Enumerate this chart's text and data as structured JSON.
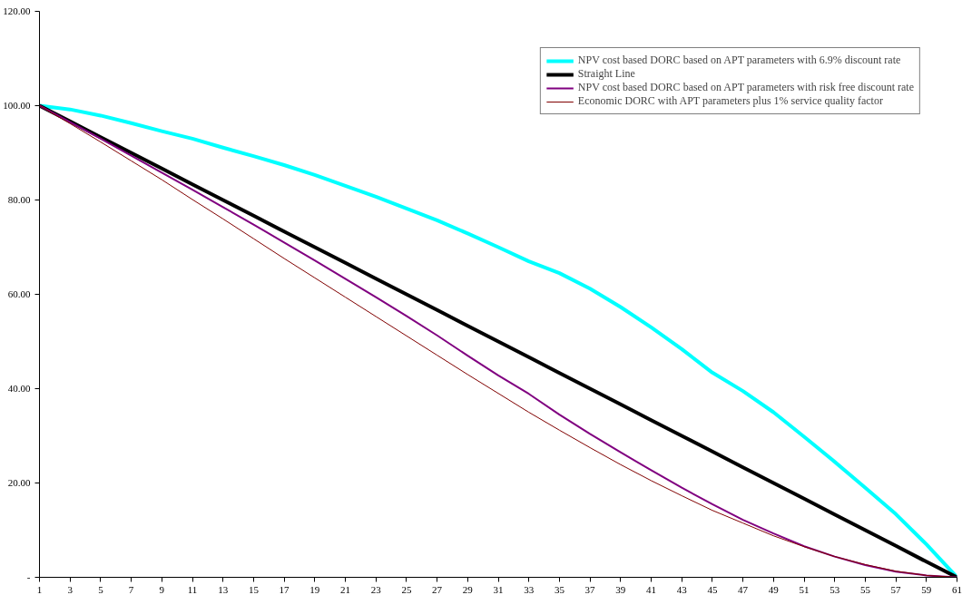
{
  "chart_data": {
    "type": "line",
    "x": [
      1,
      3,
      5,
      7,
      9,
      11,
      13,
      15,
      17,
      19,
      21,
      23,
      25,
      27,
      29,
      31,
      33,
      35,
      37,
      39,
      41,
      43,
      45,
      47,
      49,
      51,
      53,
      55,
      57,
      59,
      61
    ],
    "series": [
      {
        "name": "NPV cost based DORC based on APT parameters with 6.9% discount rate",
        "color": "#00ffff",
        "values": [
          100,
          99.2,
          97.9,
          96.3,
          94.6,
          93.0,
          91.1,
          89.3,
          87.4,
          85.3,
          83.0,
          80.7,
          78.2,
          75.7,
          72.9,
          70.0,
          67.0,
          64.5,
          61.2,
          57.3,
          53.0,
          48.4,
          43.4,
          39.5,
          35.0,
          29.8,
          24.5,
          19.0,
          13.4,
          7.0,
          0
        ]
      },
      {
        "name": "Straight Line",
        "color": "#000000",
        "values": [
          100,
          96.7,
          93.3,
          90.0,
          86.7,
          83.3,
          80.0,
          76.7,
          73.3,
          70.0,
          66.7,
          63.3,
          60.0,
          56.7,
          53.3,
          50.0,
          46.7,
          43.3,
          40.0,
          36.7,
          33.3,
          30.0,
          26.7,
          23.3,
          20.0,
          16.7,
          13.3,
          10.0,
          6.7,
          3.3,
          0
        ]
      },
      {
        "name": "NPV cost based DORC based on APT parameters with risk free discount rate",
        "color": "#800080",
        "values": [
          100,
          96.5,
          93.0,
          89.4,
          85.8,
          82.2,
          78.5,
          74.8,
          71.0,
          67.2,
          63.3,
          59.4,
          55.4,
          51.3,
          47.0,
          42.8,
          38.9,
          34.5,
          30.4,
          26.5,
          22.7,
          19.0,
          15.5,
          12.2,
          9.3,
          6.6,
          4.4,
          2.6,
          1.2,
          0.4,
          0
        ]
      },
      {
        "name": "Economic DORC with APT parameters plus 1% service quality factor",
        "color": "#800000",
        "values": [
          100,
          96.2,
          92.3,
          88.3,
          84.3,
          80.1,
          76.0,
          71.8,
          67.6,
          63.5,
          59.4,
          55.3,
          51.2,
          47.1,
          43.0,
          39.0,
          35.0,
          31.2,
          27.5,
          23.9,
          20.5,
          17.3,
          14.2,
          11.5,
          8.8,
          6.5,
          4.4,
          2.7,
          1.3,
          0.4,
          0
        ]
      }
    ],
    "xlim": [
      1,
      61
    ],
    "xticks": [
      1,
      3,
      5,
      7,
      9,
      11,
      13,
      15,
      17,
      19,
      21,
      23,
      25,
      27,
      29,
      31,
      33,
      35,
      37,
      39,
      41,
      43,
      45,
      47,
      49,
      51,
      53,
      55,
      57,
      59,
      61
    ],
    "ylim": [
      0,
      120
    ],
    "yticks": [
      {
        "value": 0,
        "label": "-"
      },
      {
        "value": 20,
        "label": "20.00"
      },
      {
        "value": 40,
        "label": "40.00"
      },
      {
        "value": 60,
        "label": "60.00"
      },
      {
        "value": 80,
        "label": "80.00"
      },
      {
        "value": 100,
        "label": "100.00"
      },
      {
        "value": 120,
        "label": "120.00"
      }
    ],
    "grid": false,
    "legend": "top right",
    "marker": "none",
    "line_style": "solid"
  }
}
